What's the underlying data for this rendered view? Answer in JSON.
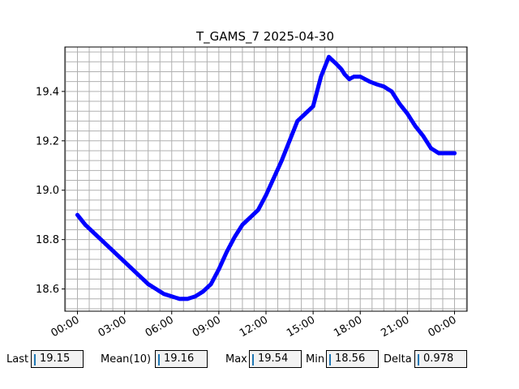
{
  "chart_data": {
    "type": "line",
    "title": "T_GAMS_7 2025-04-30",
    "xlabel": "",
    "ylabel": "",
    "x_tick_labels": [
      "00:00",
      "03:00",
      "06:00",
      "09:00",
      "12:00",
      "15:00",
      "18:00",
      "21:00",
      "00:00"
    ],
    "x_tick_hours": [
      0,
      3,
      6,
      9,
      12,
      15,
      18,
      21,
      24
    ],
    "xlim_hours": [
      -0.8,
      24.8
    ],
    "y_ticks": [
      18.6,
      18.8,
      19.0,
      19.2,
      19.4
    ],
    "y_tick_labels": [
      "18.6",
      "18.8",
      "19.0",
      "19.2",
      "19.4"
    ],
    "ylim": [
      18.51,
      19.58
    ],
    "grid": true,
    "series": [
      {
        "color": "#0000ff",
        "x_hours": [
          0.0,
          0.5,
          1.0,
          1.5,
          2.0,
          2.5,
          3.0,
          3.5,
          4.0,
          4.5,
          5.0,
          5.5,
          6.0,
          6.5,
          7.0,
          7.5,
          8.0,
          8.5,
          9.0,
          9.5,
          10.0,
          10.5,
          11.0,
          11.5,
          12.0,
          12.5,
          13.0,
          13.5,
          14.0,
          14.5,
          15.0,
          15.5,
          16.0,
          16.5,
          16.8,
          17.0,
          17.3,
          17.6,
          18.0,
          18.3,
          18.6,
          19.0,
          19.5,
          20.0,
          20.5,
          21.0,
          21.5,
          22.0,
          22.5,
          23.0,
          23.5,
          24.0
        ],
        "y": [
          18.9,
          18.86,
          18.83,
          18.8,
          18.77,
          18.74,
          18.71,
          18.68,
          18.65,
          18.62,
          18.6,
          18.58,
          18.57,
          18.56,
          18.56,
          18.57,
          18.59,
          18.62,
          18.68,
          18.75,
          18.81,
          18.86,
          18.89,
          18.92,
          18.98,
          19.05,
          19.12,
          19.2,
          19.28,
          19.31,
          19.34,
          19.46,
          19.54,
          19.51,
          19.49,
          19.47,
          19.45,
          19.46,
          19.46,
          19.45,
          19.44,
          19.43,
          19.42,
          19.4,
          19.35,
          19.31,
          19.26,
          19.22,
          19.17,
          19.15,
          19.15,
          19.15
        ]
      }
    ]
  },
  "stats": {
    "last_label": "Last",
    "last_value": "19.15",
    "mean_label": "Mean(10)",
    "mean_value": "19.16",
    "max_label": "Max",
    "max_value": "19.54",
    "min_label": "Min",
    "min_value": "18.56",
    "delta_label": "Delta",
    "delta_value": "0.978"
  }
}
